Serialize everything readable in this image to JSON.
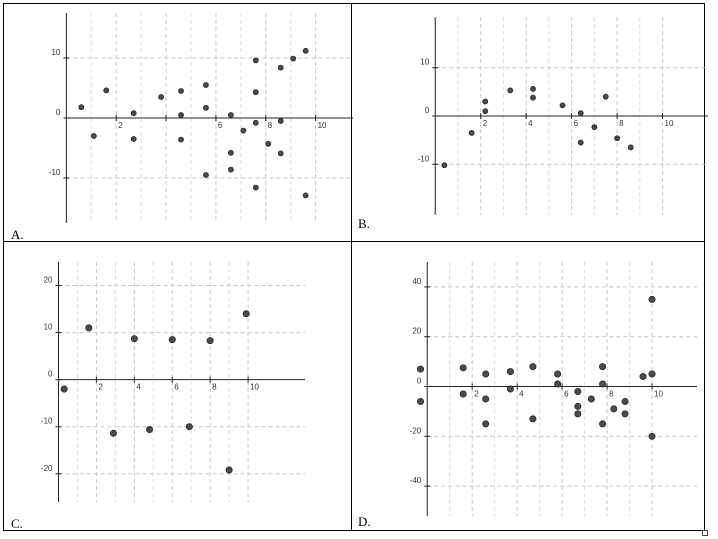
{
  "panels": [
    {
      "label": "A.",
      "chart_data": {
        "type": "scatter",
        "title": "",
        "xlabel": "",
        "ylabel": "",
        "xlim": [
          -1.5,
          11.5
        ],
        "ylim": [
          -17.5,
          17.5
        ],
        "xticks": [
          2,
          4,
          6,
          8,
          10
        ],
        "xtick_labels": [
          "2",
          "",
          "6",
          "8",
          "10"
        ],
        "yticks": [
          10,
          0,
          -10
        ],
        "ytick_labels": [
          "10",
          "0",
          "-10"
        ],
        "grid": true,
        "points": [
          [
            0.6,
            1.8
          ],
          [
            1.1,
            -3.0
          ],
          [
            1.6,
            4.6
          ],
          [
            2.7,
            0.8
          ],
          [
            2.7,
            -3.5
          ],
          [
            3.8,
            3.5
          ],
          [
            4.6,
            4.5
          ],
          [
            4.6,
            0.5
          ],
          [
            4.6,
            -3.6
          ],
          [
            5.6,
            5.5
          ],
          [
            5.6,
            1.7
          ],
          [
            5.6,
            -9.5
          ],
          [
            6.6,
            0.5
          ],
          [
            6.6,
            -5.8
          ],
          [
            6.6,
            -8.6
          ],
          [
            7.1,
            -2.1
          ],
          [
            7.6,
            9.6
          ],
          [
            7.6,
            4.3
          ],
          [
            7.6,
            -0.8
          ],
          [
            7.6,
            -11.6
          ],
          [
            8.1,
            -4.3
          ],
          [
            8.6,
            8.4
          ],
          [
            8.6,
            -0.5
          ],
          [
            8.6,
            -5.9
          ],
          [
            9.1,
            9.9
          ],
          [
            9.6,
            11.2
          ],
          [
            9.6,
            -12.9
          ]
        ]
      }
    },
    {
      "label": "B.",
      "chart_data": {
        "type": "scatter",
        "title": "",
        "xlabel": "",
        "ylabel": "",
        "xlim": [
          -1.2,
          12.0
        ],
        "ylim": [
          -20.5,
          20.5
        ],
        "xticks": [
          2,
          4,
          6,
          8,
          10
        ],
        "xtick_labels": [
          "2",
          "4",
          "6",
          "8",
          "10"
        ],
        "yticks": [
          10,
          0,
          -10
        ],
        "ytick_labels": [
          "10",
          "0",
          "-10"
        ],
        "grid": true,
        "points": [
          [
            0.4,
            -10.2
          ],
          [
            1.6,
            -3.5
          ],
          [
            2.2,
            1.0
          ],
          [
            2.2,
            3.0
          ],
          [
            3.3,
            5.3
          ],
          [
            4.3,
            5.6
          ],
          [
            4.3,
            3.8
          ],
          [
            5.6,
            2.2
          ],
          [
            6.4,
            0.6
          ],
          [
            6.4,
            -5.5
          ],
          [
            7.0,
            -2.3
          ],
          [
            7.5,
            4.0
          ],
          [
            8.0,
            -4.6
          ],
          [
            8.6,
            -6.5
          ]
        ]
      }
    },
    {
      "label": "C.",
      "chart_data": {
        "type": "scatter",
        "title": "",
        "xlabel": "",
        "ylabel": "",
        "xlim": [
          -0.5,
          13.0
        ],
        "ylim": [
          -26.0,
          25.0
        ],
        "xticks": [
          2,
          4,
          6,
          8,
          10
        ],
        "xtick_labels": [
          "2",
          "4",
          "6",
          "8",
          "10"
        ],
        "yticks": [
          20,
          10,
          0,
          -10,
          -20
        ],
        "ytick_labels": [
          "20",
          "10",
          "0",
          "-10",
          "-20"
        ],
        "grid": true,
        "points": [
          [
            0.3,
            -2.0
          ],
          [
            1.6,
            11.0
          ],
          [
            2.9,
            -11.4
          ],
          [
            4.0,
            8.7
          ],
          [
            4.8,
            -10.6
          ],
          [
            6.0,
            8.5
          ],
          [
            6.9,
            -10.0
          ],
          [
            8.0,
            8.3
          ],
          [
            9.0,
            -19.2
          ],
          [
            9.9,
            14.0
          ]
        ]
      }
    },
    {
      "label": "D.",
      "chart_data": {
        "type": "scatter",
        "title": "",
        "xlabel": "",
        "ylabel": "",
        "xlim": [
          -0.9,
          12.0
        ],
        "ylim": [
          -52.0,
          50.0
        ],
        "xticks": [
          2,
          4,
          6,
          8,
          10
        ],
        "xtick_labels": [
          "2",
          "4",
          "6",
          "8",
          "10"
        ],
        "yticks": [
          40,
          20,
          0,
          -20,
          -40
        ],
        "ytick_labels": [
          "40",
          "20",
          "0",
          "-20",
          "-40"
        ],
        "grid": true,
        "points": [
          [
            -0.3,
            7.0
          ],
          [
            -0.3,
            -6.0
          ],
          [
            1.6,
            7.5
          ],
          [
            1.6,
            -3.0
          ],
          [
            2.6,
            5.0
          ],
          [
            2.6,
            -5.0
          ],
          [
            2.6,
            -15.0
          ],
          [
            3.7,
            6.0
          ],
          [
            3.7,
            -1.0
          ],
          [
            4.7,
            8.0
          ],
          [
            4.7,
            -13.0
          ],
          [
            5.8,
            5.0
          ],
          [
            5.8,
            1.0
          ],
          [
            6.7,
            -8.0
          ],
          [
            6.7,
            -11.0
          ],
          [
            6.7,
            -2.0
          ],
          [
            7.3,
            -5.0
          ],
          [
            7.8,
            8.0
          ],
          [
            7.8,
            1.0
          ],
          [
            7.8,
            -15.0
          ],
          [
            8.3,
            -9.0
          ],
          [
            8.8,
            -6.0
          ],
          [
            8.8,
            -11.0
          ],
          [
            9.6,
            4.0
          ],
          [
            10.0,
            5.0
          ],
          [
            10.0,
            35.0
          ],
          [
            10.0,
            -20.0
          ]
        ]
      }
    }
  ]
}
